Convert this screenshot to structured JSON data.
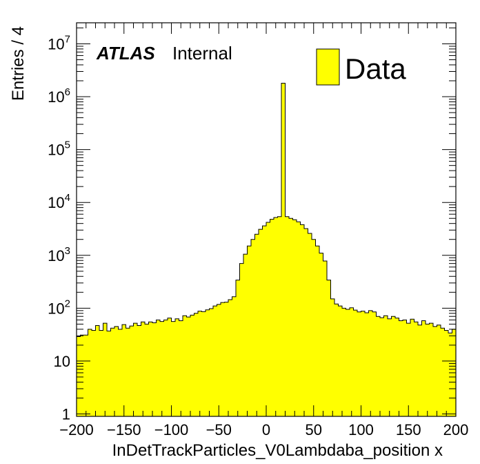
{
  "chart_data": {
    "type": "bar",
    "title": "",
    "xlabel": "InDetTrackParticles_V0Lambdaba_position x",
    "ylabel": "Entries / 4",
    "xlim": [
      -200,
      200
    ],
    "ylim": [
      0.9,
      25000000
    ],
    "yscale": "log",
    "bin_width": 4,
    "xticks": [
      -200,
      -150,
      -100,
      -50,
      0,
      50,
      100,
      150,
      200
    ],
    "xtick_labels": [
      "−200",
      "−150",
      "−100",
      "−50",
      "0",
      "50",
      "100",
      "150",
      "200"
    ],
    "yticks": [
      {
        "value": 1,
        "base": "1",
        "exp": ""
      },
      {
        "value": 10,
        "base": "10",
        "exp": ""
      },
      {
        "value": 100,
        "base": "10",
        "exp": "2"
      },
      {
        "value": 1000,
        "base": "10",
        "exp": "3"
      },
      {
        "value": 10000,
        "base": "10",
        "exp": "4"
      },
      {
        "value": 100000,
        "base": "10",
        "exp": "5"
      },
      {
        "value": 1000000,
        "base": "10",
        "exp": "6"
      },
      {
        "value": 10000000,
        "base": "10",
        "exp": "7"
      }
    ],
    "bins": [
      -200,
      -196,
      -192,
      -188,
      -184,
      -180,
      -176,
      -172,
      -168,
      -164,
      -160,
      -156,
      -152,
      -148,
      -144,
      -140,
      -136,
      -132,
      -128,
      -124,
      -120,
      -116,
      -112,
      -108,
      -104,
      -100,
      -96,
      -92,
      -88,
      -84,
      -80,
      -76,
      -72,
      -68,
      -64,
      -60,
      -56,
      -52,
      -48,
      -44,
      -40,
      -36,
      -32,
      -28,
      -24,
      -20,
      -16,
      -12,
      -8,
      -4,
      0,
      4,
      8,
      12,
      16,
      20,
      24,
      28,
      32,
      36,
      40,
      44,
      48,
      52,
      56,
      60,
      64,
      68,
      72,
      76,
      80,
      84,
      88,
      92,
      96,
      100,
      104,
      108,
      112,
      116,
      120,
      124,
      128,
      132,
      136,
      140,
      144,
      148,
      152,
      156,
      160,
      164,
      168,
      172,
      176,
      180,
      184,
      188,
      192,
      196
    ],
    "series": [
      {
        "name": "Data",
        "color": "#ffff00",
        "values": [
          29,
          31,
          31,
          40,
          38,
          47,
          38,
          52,
          37,
          42,
          45,
          40,
          49,
          42,
          46,
          52,
          47,
          55,
          50,
          55,
          53,
          60,
          56,
          60,
          65,
          56,
          63,
          58,
          72,
          68,
          74,
          80,
          88,
          86,
          93,
          98,
          110,
          118,
          128,
          130,
          145,
          165,
          340,
          700,
          1050,
          1500,
          2000,
          2500,
          3100,
          3600,
          4200,
          4800,
          5200,
          5400,
          1800000,
          5400,
          5000,
          4700,
          4300,
          3800,
          3200,
          2600,
          2000,
          1500,
          1100,
          780,
          340,
          150,
          120,
          110,
          100,
          95,
          102,
          92,
          85,
          88,
          82,
          90,
          85,
          70,
          66,
          72,
          63,
          70,
          65,
          58,
          60,
          52,
          62,
          55,
          48,
          58,
          50,
          52,
          45,
          48,
          42,
          38,
          34,
          40
        ]
      }
    ],
    "legend": {
      "position": "top-right",
      "entries": [
        "Data"
      ]
    },
    "annotations": {
      "experiment": "ATLAS",
      "status": "Internal"
    }
  }
}
